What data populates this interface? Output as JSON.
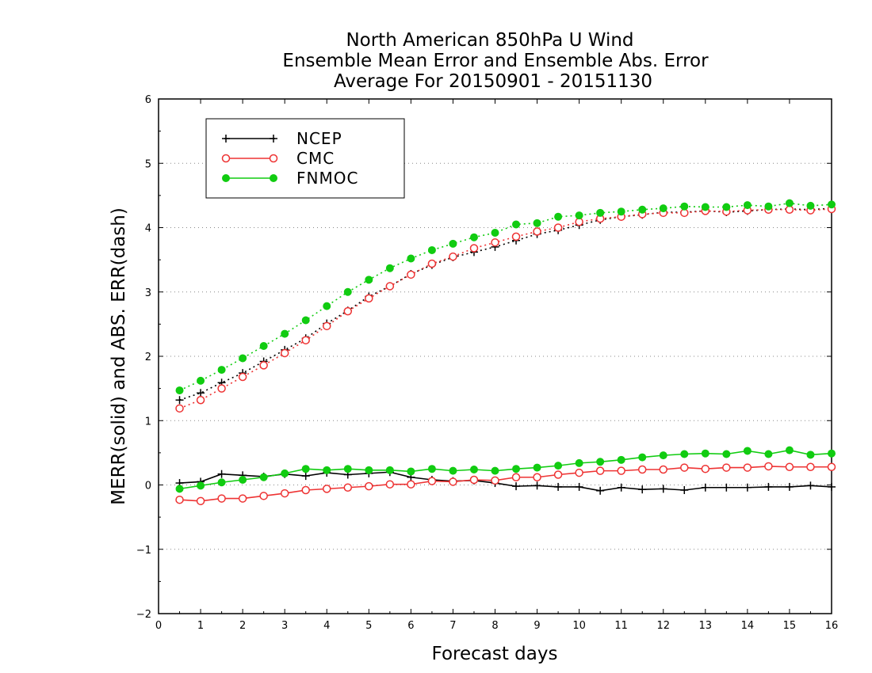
{
  "chart_data": {
    "type": "line",
    "title_lines": [
      "North American 850hPa U Wind",
      "Ensemble Mean Error and Ensemble Abs. Error",
      "Average For 20150901 - 20151130"
    ],
    "xlabel": "Forecast days",
    "ylabel": "MERR(solid) and ABS. ERR(dash)",
    "xlim": [
      0,
      16
    ],
    "ylim": [
      -2,
      6
    ],
    "xticks": [
      0,
      1,
      2,
      3,
      4,
      5,
      6,
      7,
      8,
      9,
      10,
      11,
      12,
      13,
      14,
      15,
      16
    ],
    "yticks": [
      -2,
      -1,
      0,
      1,
      2,
      3,
      4,
      5,
      6
    ],
    "ytick_labels": [
      "−2",
      "−1",
      "0",
      "1",
      "2",
      "3",
      "4",
      "5",
      "6"
    ],
    "grid": "horizontal dotted",
    "legend_position": "top-left",
    "x": [
      0.5,
      1.0,
      1.5,
      2.0,
      2.5,
      3.0,
      3.5,
      4.0,
      4.5,
      5.0,
      5.5,
      6.0,
      6.5,
      7.0,
      7.5,
      8.0,
      8.5,
      9.0,
      9.5,
      10.0,
      10.5,
      11.0,
      11.5,
      12.0,
      12.5,
      13.0,
      13.5,
      14.0,
      14.5,
      15.0,
      15.5,
      16.0
    ],
    "series": [
      {
        "name": "NCEP",
        "color": "#000000",
        "marker": "plus",
        "mean_error": [
          0.03,
          0.05,
          0.17,
          0.15,
          0.13,
          0.17,
          0.14,
          0.19,
          0.16,
          0.18,
          0.2,
          0.12,
          0.08,
          0.06,
          0.07,
          0.03,
          -0.02,
          -0.01,
          -0.03,
          -0.03,
          -0.09,
          -0.04,
          -0.07,
          -0.06,
          -0.08,
          -0.04,
          -0.04,
          -0.04,
          -0.03,
          -0.03,
          -0.01,
          -0.03
        ],
        "abs_error": [
          1.32,
          1.43,
          1.59,
          1.74,
          1.92,
          2.1,
          2.28,
          2.51,
          2.71,
          2.93,
          3.09,
          3.28,
          3.42,
          3.54,
          3.62,
          3.7,
          3.8,
          3.9,
          3.96,
          4.04,
          4.12,
          4.17,
          4.2,
          4.24,
          4.24,
          4.26,
          4.24,
          4.26,
          4.28,
          4.29,
          4.28,
          4.3
        ]
      },
      {
        "name": "CMC",
        "color": "#ee3333",
        "marker": "open-circle",
        "mean_error": [
          -0.23,
          -0.25,
          -0.21,
          -0.21,
          -0.17,
          -0.13,
          -0.08,
          -0.06,
          -0.04,
          -0.02,
          0.01,
          0.01,
          0.06,
          0.05,
          0.08,
          0.07,
          0.12,
          0.12,
          0.16,
          0.19,
          0.22,
          0.22,
          0.24,
          0.24,
          0.27,
          0.25,
          0.27,
          0.27,
          0.29,
          0.28,
          0.28,
          0.28
        ],
        "abs_error": [
          1.19,
          1.32,
          1.5,
          1.68,
          1.86,
          2.05,
          2.25,
          2.47,
          2.7,
          2.9,
          3.09,
          3.27,
          3.44,
          3.55,
          3.68,
          3.77,
          3.86,
          3.94,
          4.0,
          4.09,
          4.14,
          4.17,
          4.21,
          4.23,
          4.23,
          4.26,
          4.25,
          4.27,
          4.28,
          4.28,
          4.27,
          4.29
        ]
      },
      {
        "name": "FNMOC",
        "color": "#11cc11",
        "marker": "filled-circle",
        "mean_error": [
          -0.06,
          -0.01,
          0.04,
          0.08,
          0.12,
          0.18,
          0.25,
          0.23,
          0.25,
          0.23,
          0.23,
          0.21,
          0.25,
          0.22,
          0.24,
          0.22,
          0.25,
          0.27,
          0.3,
          0.34,
          0.36,
          0.39,
          0.43,
          0.46,
          0.48,
          0.49,
          0.48,
          0.53,
          0.48,
          0.54,
          0.47,
          0.49
        ],
        "abs_error": [
          1.47,
          1.62,
          1.79,
          1.97,
          2.16,
          2.35,
          2.56,
          2.78,
          3.0,
          3.19,
          3.37,
          3.52,
          3.65,
          3.75,
          3.85,
          3.92,
          4.05,
          4.07,
          4.17,
          4.19,
          4.23,
          4.25,
          4.28,
          4.3,
          4.33,
          4.32,
          4.32,
          4.35,
          4.33,
          4.38,
          4.34,
          4.36
        ]
      }
    ]
  }
}
